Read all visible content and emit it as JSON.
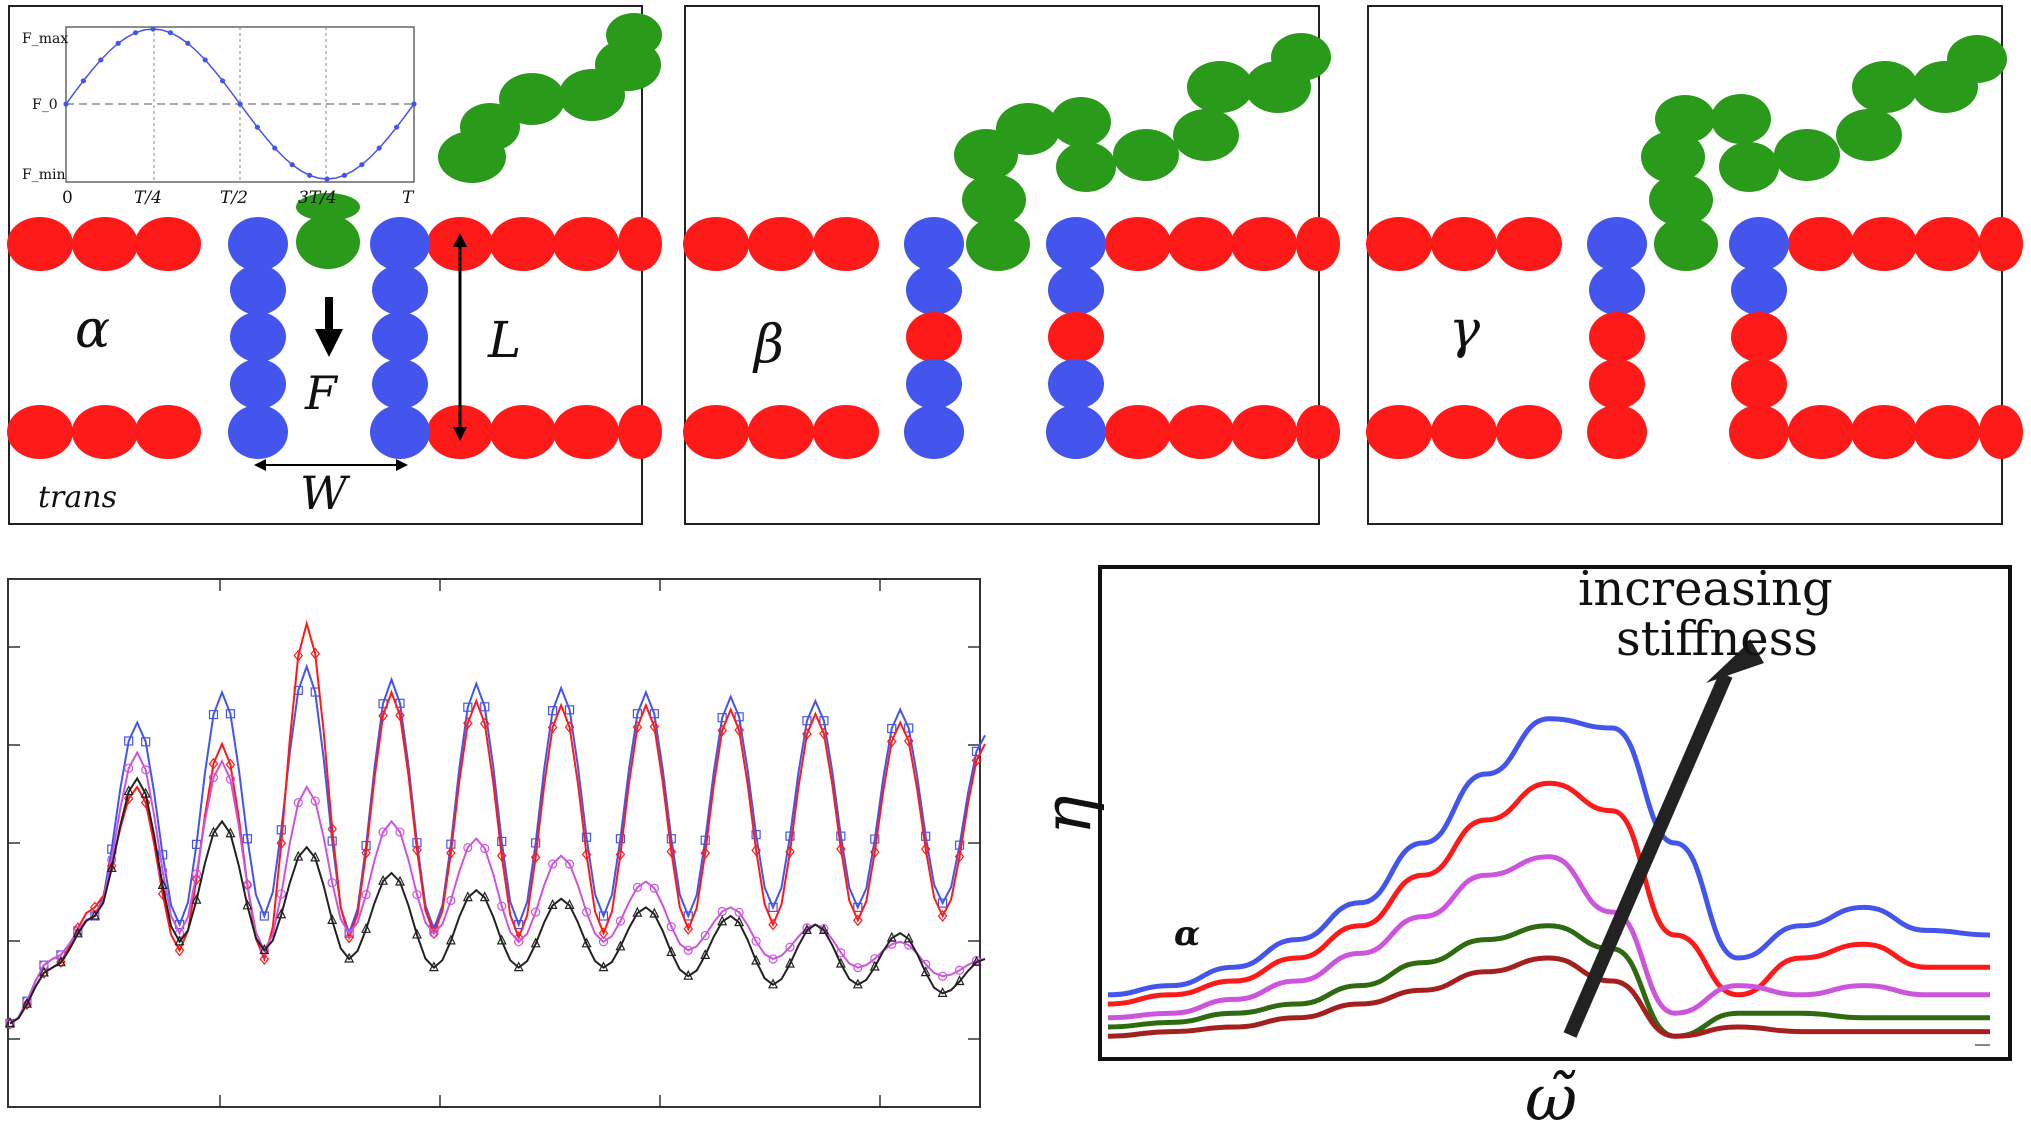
{
  "panels": [
    {
      "id": "alpha",
      "label": "α",
      "top_label": "L",
      "force_label": "F",
      "width_label": "W",
      "side_label": "trans"
    },
    {
      "id": "beta",
      "label": "β"
    },
    {
      "id": "gamma",
      "label": "γ"
    }
  ],
  "inset_plot": {
    "y_ticks": [
      "F_max",
      "F_0",
      "F_min"
    ],
    "x_ticks": [
      "0",
      "T/4",
      "T/2",
      "3T/4",
      "T"
    ]
  },
  "right_plot": {
    "ylabel": "η",
    "xlabel": "ω̃",
    "annotation_line1": "increasing",
    "annotation_line2": "stiffness",
    "curve_label": "α"
  },
  "colors": {
    "red": "#ff1a1a",
    "blue": "#4455ee",
    "green": "#2a9a1a",
    "purple": "#cc55dd",
    "black": "#222222",
    "dark_green": "#2e6b10",
    "dark_red": "#a3201f"
  },
  "chart_data": [
    {
      "type": "line",
      "series": [
        {
          "values": [
            0.05,
            0.2,
            0.3,
            0.75,
            0.28,
            0.82,
            0.3,
            0.88,
            0.26,
            0.85,
            0.27,
            0.84,
            0.28,
            0.83,
            0.3,
            0.82,
            0.3,
            0.81,
            0.32,
            0.8,
            0.32,
            0.78,
            0.33,
            0.72
          ]
        },
        {
          "values": [
            0.05,
            0.18,
            0.32,
            0.6,
            0.22,
            0.7,
            0.2,
            0.98,
            0.25,
            0.82,
            0.26,
            0.8,
            0.25,
            0.79,
            0.26,
            0.79,
            0.27,
            0.78,
            0.28,
            0.77,
            0.29,
            0.75,
            0.3,
            0.7
          ]
        },
        {
          "values": [
            0.05,
            0.2,
            0.3,
            0.68,
            0.26,
            0.66,
            0.22,
            0.6,
            0.26,
            0.52,
            0.26,
            0.48,
            0.24,
            0.44,
            0.24,
            0.38,
            0.22,
            0.32,
            0.2,
            0.28,
            0.18,
            0.24,
            0.16,
            0.2
          ]
        },
        {
          "values": [
            0.05,
            0.18,
            0.3,
            0.62,
            0.24,
            0.52,
            0.22,
            0.46,
            0.2,
            0.4,
            0.18,
            0.36,
            0.18,
            0.34,
            0.18,
            0.32,
            0.16,
            0.3,
            0.14,
            0.28,
            0.14,
            0.26,
            0.12,
            0.2
          ]
        }
      ]
    },
    {
      "type": "line",
      "series": [
        {
          "values": [
            0.12,
            0.14,
            0.18,
            0.24,
            0.32,
            0.45,
            0.6,
            0.72,
            0.7,
            0.45,
            0.2,
            0.27,
            0.31,
            0.26,
            0.25
          ]
        },
        {
          "values": [
            0.1,
            0.12,
            0.15,
            0.2,
            0.27,
            0.38,
            0.5,
            0.58,
            0.52,
            0.25,
            0.12,
            0.2,
            0.23,
            0.18,
            0.18
          ]
        },
        {
          "values": [
            0.07,
            0.08,
            0.11,
            0.15,
            0.21,
            0.29,
            0.38,
            0.42,
            0.3,
            0.08,
            0.14,
            0.12,
            0.14,
            0.12,
            0.12
          ]
        },
        {
          "values": [
            0.05,
            0.06,
            0.08,
            0.1,
            0.14,
            0.19,
            0.24,
            0.27,
            0.22,
            0.03,
            0.08,
            0.08,
            0.07,
            0.07,
            0.07
          ]
        },
        {
          "values": [
            0.03,
            0.04,
            0.05,
            0.07,
            0.1,
            0.13,
            0.17,
            0.2,
            0.15,
            0.03,
            0.05,
            0.04,
            0.04,
            0.04,
            0.04
          ]
        }
      ]
    }
  ]
}
